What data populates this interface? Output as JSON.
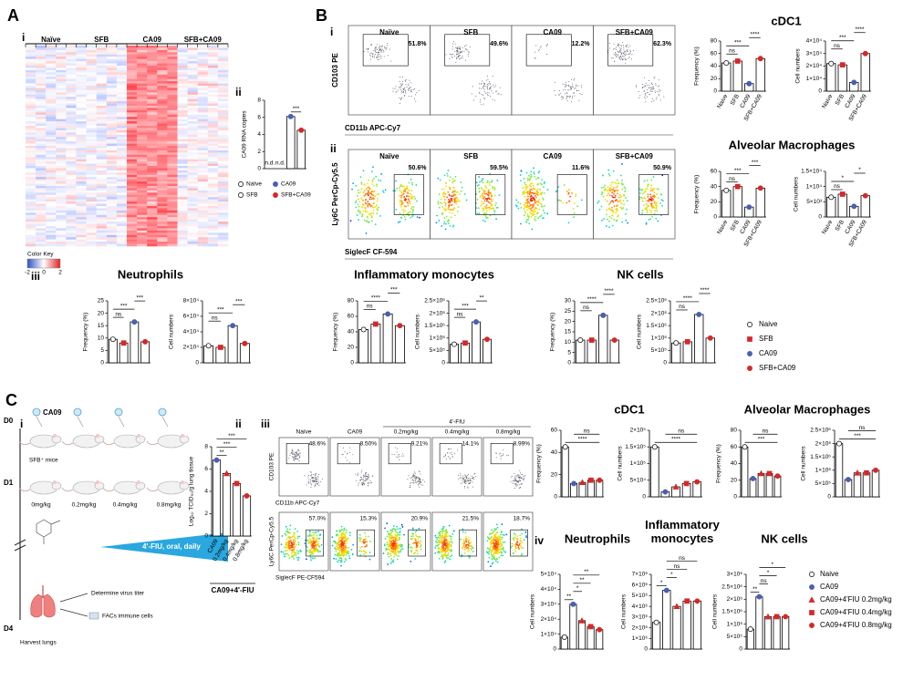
{
  "panel_marks": [
    "A",
    "i",
    "ii",
    "B",
    "i",
    "ii",
    "iii",
    "C",
    "i",
    "ii",
    "iii",
    "iv"
  ],
  "heatmap": {
    "groups": [
      "Naïve",
      "SFB",
      "CA09",
      "SFB+CA09"
    ],
    "key_title": "Color Key",
    "key_ticks": [
      -2,
      0,
      2
    ]
  },
  "rna": {
    "ylabel": "CA09 RNA copies",
    "values": [
      null,
      null,
      6.1,
      4.5
    ],
    "value_labels": [
      "n.d.",
      "n.d.",
      null,
      null
    ],
    "ylim": [
      0,
      8
    ],
    "yticks": [
      0,
      2,
      4,
      6,
      8
    ],
    "sig": [
      "***"
    ],
    "legend": [
      {
        "name": "Naïve",
        "color": "#ffffff",
        "marker": "circle"
      },
      {
        "name": "SFB",
        "color": "#ffffff",
        "marker": "circle"
      },
      {
        "name": "CA09",
        "color": "#4a5fb0",
        "marker": "circle"
      },
      {
        "name": "SFB+CA09",
        "color": "#d62728",
        "marker": "circle"
      }
    ]
  },
  "flow_B": {
    "samples": [
      "Naïve",
      "SFB",
      "CA09",
      "SFB+CA09"
    ],
    "rows": [
      {
        "ylabel": "CD103 PE",
        "xlabel": "CD11b APC-Cy7",
        "percents": [
          "51.8%",
          "49.6%",
          "12.2%",
          "62.3%"
        ]
      },
      {
        "ylabel": "Ly6C PerCp-Cy5.5",
        "xlabel": "SiglecF CF-594",
        "percents": [
          "50.6%",
          "59.5%",
          "11.6%",
          "50.9%"
        ]
      }
    ]
  },
  "B_groups": [
    {
      "name": "Naive",
      "color": "#ffffff",
      "marker": "circle"
    },
    {
      "name": "SFB",
      "color": "#d62728",
      "marker": "square"
    },
    {
      "name": "CA09",
      "color": "#4a5fb0",
      "marker": "circle"
    },
    {
      "name": "SFB+CA09",
      "color": "#d62728",
      "marker": "circle"
    }
  ],
  "B_charts": [
    {
      "title": "cDC1",
      "ylabel": "Frequency (%)",
      "categories": [
        "Naive",
        "SFB",
        "CA09",
        "SFB+CA09"
      ],
      "values": [
        45,
        48,
        12,
        52
      ],
      "ylim": [
        0,
        80
      ],
      "yticks": [
        0,
        20,
        40,
        60,
        80
      ],
      "sig": [
        "ns",
        "***",
        "****"
      ]
    },
    {
      "ylabel": "Cell numbers",
      "categories": [
        "Naive",
        "SFB",
        "CA09",
        "SFB+CA09"
      ],
      "values": [
        22000,
        21000,
        7000,
        30000
      ],
      "ylim": [
        0,
        40000
      ],
      "yticks": [
        0,
        {
          "value": 10000,
          "label": "1×10⁴"
        },
        {
          "value": 20000,
          "label": "2×10⁴"
        },
        {
          "value": 30000,
          "label": "3×10⁴"
        },
        {
          "value": 40000,
          "label": "4×10⁴"
        }
      ],
      "sig": [
        "ns",
        "***",
        "****"
      ]
    },
    {
      "title": "Alveolar Macrophages",
      "ylabel": "Frequency (%)",
      "categories": [
        "Naive",
        "SFB",
        "CA09",
        "SFB+CA09"
      ],
      "values": [
        35,
        40,
        13,
        38
      ],
      "ylim": [
        0,
        60
      ],
      "yticks": [
        0,
        20,
        40,
        60
      ],
      "sig": [
        "ns",
        "***",
        "***"
      ]
    },
    {
      "ylabel": "Cell numbers",
      "categories": [
        "Naive",
        "SFB",
        "CA09",
        "SFB+CA09"
      ],
      "values": [
        6500,
        7500,
        3500,
        7000
      ],
      "ylim": [
        0,
        15000
      ],
      "yticks": [
        0,
        {
          "value": 5000,
          "label": "5×10³"
        },
        {
          "value": 10000,
          "label": "1×10⁴"
        },
        {
          "value": 15000,
          "label": "1.5×10⁴"
        }
      ],
      "sig": [
        "ns",
        "*",
        "*"
      ]
    },
    {
      "title": "Neutrophils",
      "ylabel": "Frequency (%)",
      "values": [
        9.5,
        8,
        16.5,
        8.5
      ],
      "ylim": [
        0,
        25
      ],
      "yticks": [
        0,
        5,
        10,
        15,
        20,
        25
      ],
      "sig": [
        "ns",
        "***",
        "***"
      ]
    },
    {
      "ylabel": "Cell numbers",
      "values": [
        22000,
        20000,
        48000,
        25000
      ],
      "ylim": [
        0,
        80000
      ],
      "yticks": [
        0,
        {
          "value": 20000,
          "label": "2×10⁴"
        },
        {
          "value": 40000,
          "label": "4×10⁴"
        },
        {
          "value": 60000,
          "label": "6×10⁴"
        },
        {
          "value": 80000,
          "label": "8×10⁴"
        }
      ],
      "sig": [
        "ns",
        "***",
        "***"
      ]
    },
    {
      "title": "Inflammatory monocytes",
      "ylabel": "Frequency (%)",
      "values": [
        43,
        50,
        63,
        48
      ],
      "ylim": [
        0,
        80
      ],
      "yticks": [
        0,
        20,
        40,
        60,
        80
      ],
      "sig": [
        "ns",
        "****",
        "***"
      ]
    },
    {
      "ylabel": "Cell numbers",
      "values": [
        750000,
        800000,
        1650000,
        950000
      ],
      "ylim": [
        0,
        2500000
      ],
      "yticks": [
        0,
        {
          "value": 500000,
          "label": "5×10⁵"
        },
        {
          "value": 1000000,
          "label": "1×10⁶"
        },
        {
          "value": 1500000,
          "label": "1.5×10⁶"
        },
        {
          "value": 2000000,
          "label": "2×10⁶"
        },
        {
          "value": 2500000,
          "label": "2.5×10⁶"
        }
      ],
      "sig": [
        "ns",
        "***",
        "**"
      ]
    },
    {
      "title": "NK cells",
      "ylabel": "Frequency (%)",
      "values": [
        11,
        11,
        23,
        11
      ],
      "ylim": [
        0,
        30
      ],
      "yticks": [
        0,
        5,
        10,
        15,
        20,
        25,
        30
      ],
      "sig": [
        "ns",
        "****",
        "****"
      ]
    },
    {
      "ylabel": "Cell numbers",
      "values": [
        800000,
        850000,
        1950000,
        1000000
      ],
      "ylim": [
        0,
        2500000
      ],
      "yticks": [
        0,
        {
          "value": 500000,
          "label": "5×10⁵"
        },
        {
          "value": 1000000,
          "label": "1×10⁶"
        },
        {
          "value": 1500000,
          "label": "1.5×10⁶"
        },
        {
          "value": 2000000,
          "label": "2×10⁶"
        },
        {
          "value": 2500000,
          "label": "2.5×10⁶"
        }
      ],
      "sig": [
        "ns",
        "****",
        "****"
      ]
    }
  ],
  "schematic": {
    "virus": "CA09",
    "mice": "SFB⁺ mice",
    "days": [
      "D0",
      "D1",
      "D4"
    ],
    "doses": [
      "0mg/kg",
      "0.2mg/kg",
      "0.4mg/kg",
      "0.8mg/kg"
    ],
    "treatment": "4'-FIU, oral, daily",
    "harvest": "Harvest lungs",
    "outcomes": [
      "Determine virus titer",
      "FACs immune cells"
    ]
  },
  "titer": {
    "ylabel": "Log₁₀ TCID₅₀/g lung tissue",
    "categories": [
      "CA09",
      "0.2mg/kg",
      "0.4mg/kg",
      "0.8mg/kg"
    ],
    "group_label": "CA09+4'-FIU",
    "values": [
      6.8,
      5.6,
      4.7,
      3.6
    ],
    "ylim": [
      0,
      8
    ],
    "yticks": [
      0,
      2,
      4,
      6,
      8
    ],
    "sig": [
      "**",
      "***",
      "***"
    ]
  },
  "flow_C": {
    "header": "4'-FIU",
    "samples": [
      "Naïve",
      "CA09",
      "0.2mg/kg",
      "0.4mg/kg",
      "0.8mg/kg"
    ],
    "rows": [
      {
        "ylabel": "CD103 PE",
        "xlabel": "CD11b APC-Cy7",
        "percents": [
          "48.6%",
          "8.50%",
          "9.21%",
          "14.1%",
          "8.99%"
        ]
      },
      {
        "ylabel": "Ly6C PerCp-Cy5.5",
        "xlabel": "SiglecF PE-CF594",
        "percents": [
          "57.0%",
          "15.3%",
          "20.9%",
          "21.5%",
          "18.7%"
        ]
      }
    ]
  },
  "C_groups": [
    {
      "name": "Naive",
      "color": "#ffffff",
      "marker": "circle"
    },
    {
      "name": "CA09",
      "color": "#4a5fb0",
      "marker": "circle"
    },
    {
      "name": "CA09+4'FIU 0.2mg/kg",
      "color": "#d62728",
      "marker": "triangle"
    },
    {
      "name": "CA09+4'FIU 0.4mg/kg",
      "color": "#d62728",
      "marker": "square"
    },
    {
      "name": "CA09+4'FIU 0.8mg/kg",
      "color": "#d62728",
      "marker": "circle"
    }
  ],
  "C_charts": [
    {
      "title": "cDC1",
      "ylabel": "Frequency (%)",
      "values": [
        45,
        12,
        13,
        15,
        15
      ],
      "ylim": [
        0,
        60
      ],
      "yticks": [
        0,
        20,
        40,
        60
      ],
      "sig": [
        "****",
        "ns"
      ]
    },
    {
      "ylabel": "Cell numbers",
      "values": [
        150000,
        15000,
        30000,
        40000,
        45000
      ],
      "ylim": [
        0,
        200000
      ],
      "yticks": [
        0,
        {
          "value": 50000,
          "label": "5×10⁴"
        },
        {
          "value": 100000,
          "label": "1×10⁵"
        },
        {
          "value": 150000,
          "label": "1.5×10⁵"
        },
        {
          "value": 200000,
          "label": "2×10⁵"
        }
      ],
      "sig": [
        "****",
        "ns"
      ]
    },
    {
      "title": "Alveolar Macrophages",
      "ylabel": "Frequency (%)",
      "values": [
        60,
        22,
        28,
        28,
        25
      ],
      "ylim": [
        0,
        80
      ],
      "yticks": [
        0,
        20,
        40,
        60,
        80
      ],
      "sig": [
        "***",
        "ns"
      ]
    },
    {
      "ylabel": "Cell numbers",
      "values": [
        2000000,
        650000,
        900000,
        900000,
        1000000
      ],
      "ylim": [
        0,
        2500000
      ],
      "yticks": [
        0,
        {
          "value": 500000,
          "label": "5×10⁵"
        },
        {
          "value": 1000000,
          "label": "1×10⁶"
        },
        {
          "value": 1500000,
          "label": "1.5×10⁶"
        },
        {
          "value": 2000000,
          "label": "2×10⁶"
        },
        {
          "value": 2500000,
          "label": "2.5×10⁶"
        }
      ],
      "sig": [
        "***",
        "ns"
      ]
    },
    {
      "title": "Neutrophils",
      "ylabel": "Cell numbers",
      "values": [
        8000,
        30000,
        19000,
        15000,
        13000
      ],
      "ylim": [
        0,
        50000
      ],
      "yticks": [
        0,
        {
          "value": 10000,
          "label": "1×10⁴"
        },
        {
          "value": 20000,
          "label": "2×10⁴"
        },
        {
          "value": 30000,
          "label": "3×10⁴"
        },
        {
          "value": 40000,
          "label": "4×10⁴"
        },
        {
          "value": 50000,
          "label": "5×10⁴"
        }
      ],
      "sig": [
        "**",
        "*",
        "**",
        "**"
      ]
    },
    {
      "title": "Inflammatory monocytes",
      "ylabel": "Cell numbers",
      "values": [
        2500000,
        5500000,
        4000000,
        4500000,
        4500000
      ],
      "ylim": [
        0,
        7000000
      ],
      "yticks": [
        0,
        {
          "value": 1000000,
          "label": "1×10⁶"
        },
        {
          "value": 2000000,
          "label": "2×10⁶"
        },
        {
          "value": 3000000,
          "label": "3×10⁶"
        },
        {
          "value": 4000000,
          "label": "4×10⁶"
        },
        {
          "value": 5000000,
          "label": "5×10⁶"
        },
        {
          "value": 6000000,
          "label": "6×10⁶"
        },
        {
          "value": 7000000,
          "label": "7×10⁶"
        }
      ],
      "sig": [
        "*",
        "*",
        "ns",
        "ns"
      ]
    },
    {
      "title": "NK cells",
      "ylabel": "Cell numbers",
      "values": [
        800000,
        2100000,
        1300000,
        1300000,
        1300000
      ],
      "ylim": [
        0,
        3000000
      ],
      "yticks": [
        0,
        {
          "value": 500000,
          "label": "5×10⁵"
        },
        {
          "value": 1000000,
          "label": "1×10⁶"
        },
        {
          "value": 1500000,
          "label": "1.5×10⁶"
        },
        {
          "value": 2000000,
          "label": "2×10⁶"
        },
        {
          "value": 2500000,
          "label": "2.5×10⁶"
        },
        {
          "value": 3000000,
          "label": "3×10⁶"
        }
      ],
      "sig": [
        "**",
        "ns",
        "*",
        "*"
      ]
    }
  ]
}
